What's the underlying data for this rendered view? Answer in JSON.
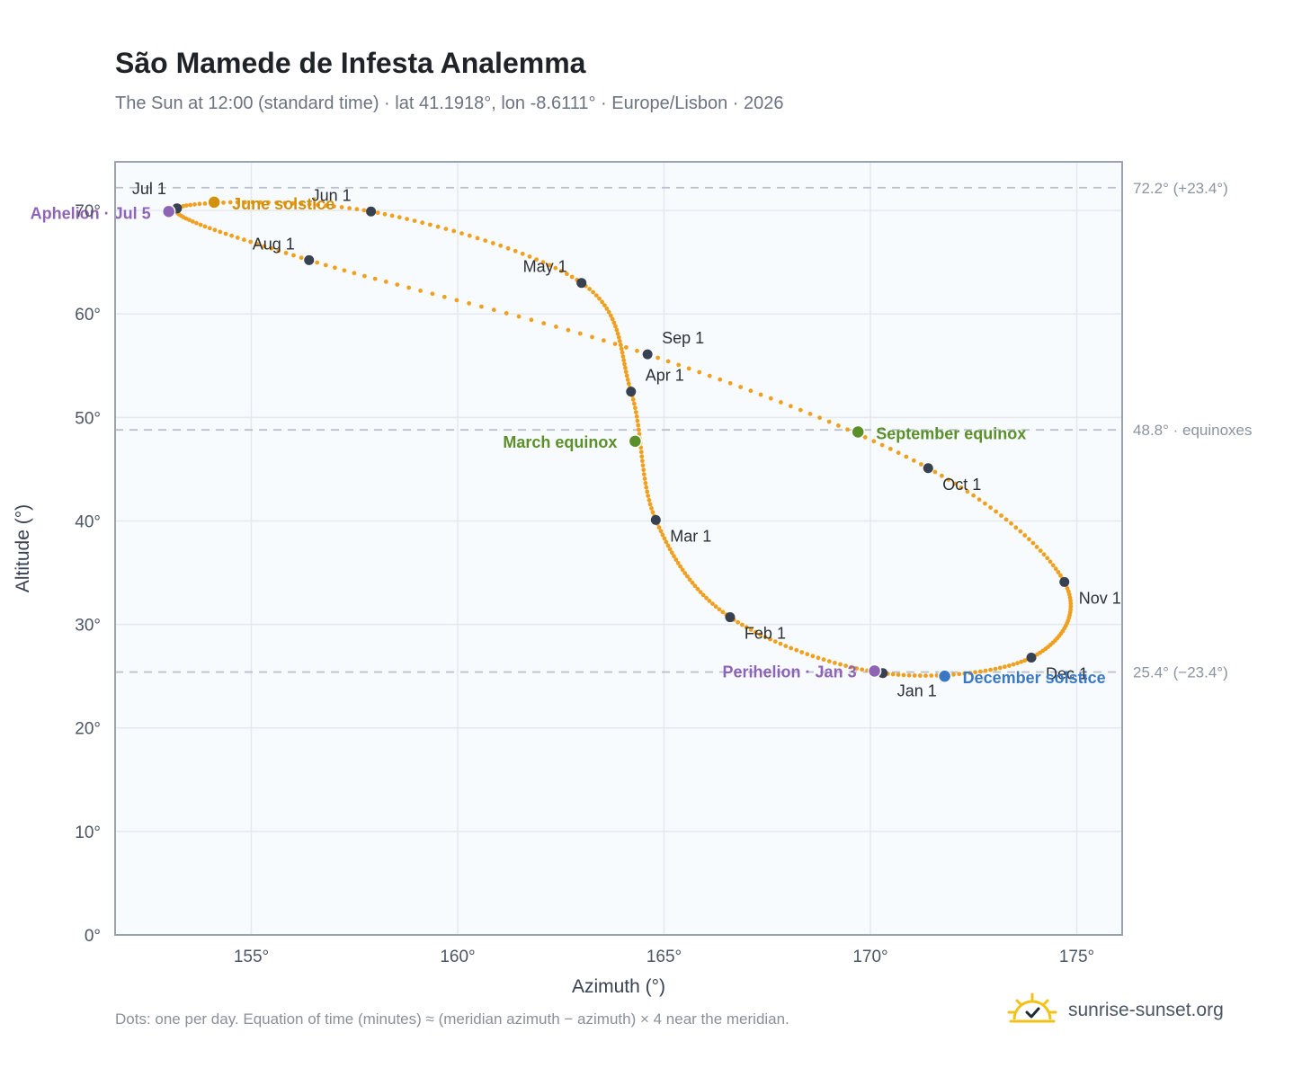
{
  "title": "São Mamede de Infesta Analemma",
  "subtitle": "The Sun at 12:00 (standard time) · lat 41.1918°, lon -8.6111° · Europe/Lisbon · 2026",
  "footnote": "Dots: one per day. Equation of time (minutes) ≈ (meridian azimuth − azimuth) × 4 near the meridian.",
  "brand": {
    "text": "sunrise-sunset.org",
    "logo_icon": "sun-logo-icon"
  },
  "colors": {
    "curve": "#f0a020",
    "month_marker": "#374151",
    "solstice_june": "#d4900a",
    "equinox": "#5b8f29",
    "solstice_december": "#3a78c4",
    "apsis": "#8e64b6",
    "reference_line": "#b9c2cc",
    "plot_background": "#f8fbfd",
    "grid": "#e4e9ee",
    "frame": "#9aa4b1"
  },
  "chart_data": {
    "type": "scatter",
    "title": "São Mamede de Infesta Analemma",
    "xlabel": "Azimuth (°)",
    "ylabel": "Altitude (°)",
    "xlim": [
      151.7,
      176.1
    ],
    "ylim": [
      0,
      74.7
    ],
    "x_ticks": [
      155,
      160,
      165,
      170,
      175
    ],
    "y_ticks": [
      0,
      10,
      20,
      30,
      40,
      50,
      60,
      70
    ],
    "x_tick_labels": [
      "155°",
      "160°",
      "165°",
      "170°",
      "175°"
    ],
    "y_tick_labels": [
      "0°",
      "10°",
      "20°",
      "30°",
      "40°",
      "50°",
      "60°",
      "70°"
    ],
    "grid": true,
    "legend": "none",
    "reference_lines": [
      {
        "altitude": 72.2,
        "label": "72.2° (+23.4°)"
      },
      {
        "altitude": 48.8,
        "label": "48.8° · equinoxes"
      },
      {
        "altitude": 25.4,
        "label": "25.4° (−23.4°)"
      }
    ],
    "month_anchors": [
      {
        "label": "Jan 1",
        "azimuth": 170.3,
        "altitude": 25.3
      },
      {
        "label": "Feb 1",
        "azimuth": 166.6,
        "altitude": 30.7
      },
      {
        "label": "Mar 1",
        "azimuth": 164.8,
        "altitude": 40.1
      },
      {
        "label": "Apr 1",
        "azimuth": 164.2,
        "altitude": 52.5
      },
      {
        "label": "May 1",
        "azimuth": 163.0,
        "altitude": 63.0
      },
      {
        "label": "Jun 1",
        "azimuth": 157.9,
        "altitude": 69.9
      },
      {
        "label": "Jul 1",
        "azimuth": 153.2,
        "altitude": 70.2
      },
      {
        "label": "Aug 1",
        "azimuth": 156.4,
        "altitude": 65.2
      },
      {
        "label": "Sep 1",
        "azimuth": 164.6,
        "altitude": 56.1
      },
      {
        "label": "Oct 1",
        "azimuth": 171.4,
        "altitude": 45.1
      },
      {
        "label": "Nov 1",
        "azimuth": 174.7,
        "altitude": 34.1
      },
      {
        "label": "Dec 1",
        "azimuth": 173.9,
        "altitude": 26.8
      }
    ],
    "events": [
      {
        "label": "June solstice",
        "azimuth": 154.1,
        "altitude": 70.8,
        "color_key": "solstice_june"
      },
      {
        "label": "March equinox",
        "azimuth": 164.3,
        "altitude": 47.7,
        "color_key": "equinox"
      },
      {
        "label": "September equinox",
        "azimuth": 169.7,
        "altitude": 48.6,
        "color_key": "equinox"
      },
      {
        "label": "December solstice",
        "azimuth": 171.8,
        "altitude": 25.0,
        "color_key": "solstice_december"
      },
      {
        "label": "Aphelion · Jul 5",
        "azimuth": 153.0,
        "altitude": 69.9,
        "color_key": "apsis"
      },
      {
        "label": "Perihelion · Jan 3",
        "azimuth": 170.1,
        "altitude": 25.5,
        "color_key": "apsis"
      }
    ]
  }
}
